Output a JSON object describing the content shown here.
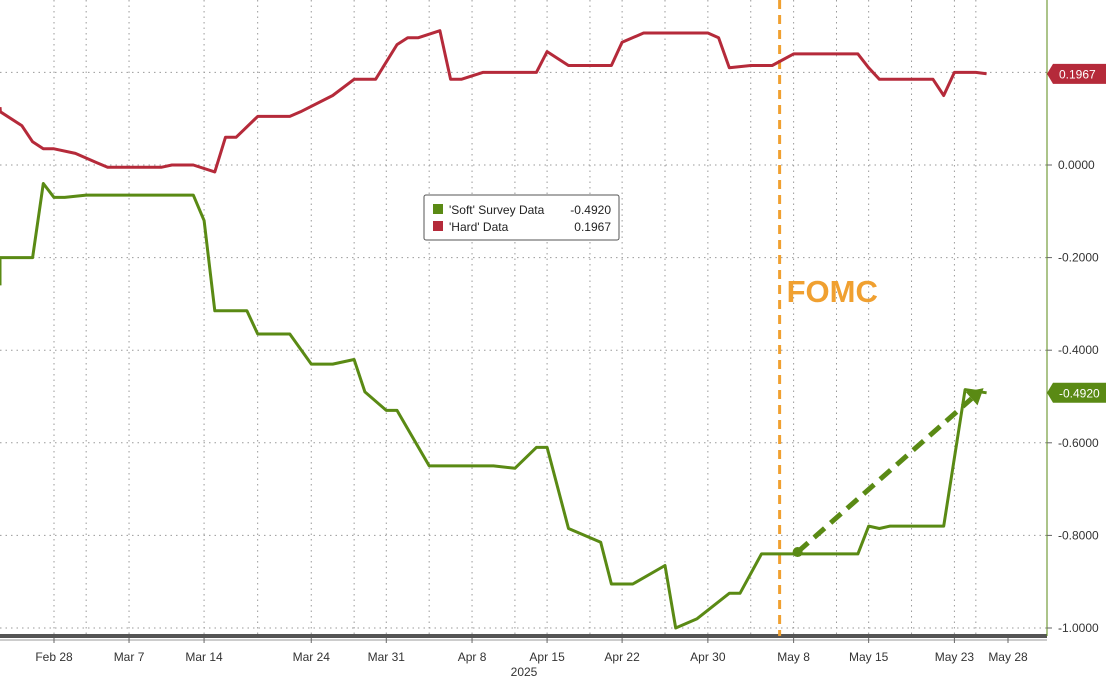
{
  "chart_data": {
    "type": "line",
    "xlabel": "2025",
    "x_ticks": [
      "Feb 28",
      "Mar 7",
      "Mar 14",
      "Mar 24",
      "Mar 31",
      "Apr 8",
      "Apr 15",
      "Apr 22",
      "Apr 30",
      "May 8",
      "May 15",
      "May 23",
      "May 28"
    ],
    "y_ticks": [
      "0.0000",
      "-0.2000",
      "-0.4000",
      "-0.6000",
      "-0.8000",
      "-1.0000"
    ],
    "ylim": [
      -1.0,
      0.35
    ],
    "grid": true,
    "legend_position": "center",
    "annotation": {
      "label": "FOMC",
      "x": "May 8",
      "color": "#f0a030"
    },
    "colors": {
      "soft": "#5a8a14",
      "hard": "#b52a3a",
      "fomc": "#f0a030",
      "arrow": "#5a8a14"
    },
    "series": [
      {
        "name": "'Soft' Survey Data",
        "last_label": "-0.4920",
        "last": -0.492,
        "color": "#5a8a14",
        "values": [
          {
            "x": "2025-02-21",
            "y": -0.26
          },
          {
            "x": "2025-02-22",
            "y": -0.2
          },
          {
            "x": "2025-02-26",
            "y": -0.2
          },
          {
            "x": "2025-02-27",
            "y": -0.04
          },
          {
            "x": "2025-02-28",
            "y": -0.07
          },
          {
            "x": "2025-03-01",
            "y": -0.07
          },
          {
            "x": "2025-03-03",
            "y": -0.065
          },
          {
            "x": "2025-03-13",
            "y": -0.065
          },
          {
            "x": "2025-03-14",
            "y": -0.12
          },
          {
            "x": "2025-03-15",
            "y": -0.315
          },
          {
            "x": "2025-03-18",
            "y": -0.315
          },
          {
            "x": "2025-03-19",
            "y": -0.365
          },
          {
            "x": "2025-03-22",
            "y": -0.365
          },
          {
            "x": "2025-03-24",
            "y": -0.43
          },
          {
            "x": "2025-03-26",
            "y": -0.43
          },
          {
            "x": "2025-03-28",
            "y": -0.42
          },
          {
            "x": "2025-03-29",
            "y": -0.49
          },
          {
            "x": "2025-03-31",
            "y": -0.53
          },
          {
            "x": "2025-04-01",
            "y": -0.53
          },
          {
            "x": "2025-04-04",
            "y": -0.65
          },
          {
            "x": "2025-04-10",
            "y": -0.65
          },
          {
            "x": "2025-04-12",
            "y": -0.655
          },
          {
            "x": "2025-04-14",
            "y": -0.61
          },
          {
            "x": "2025-04-15",
            "y": -0.61
          },
          {
            "x": "2025-04-17",
            "y": -0.785
          },
          {
            "x": "2025-04-20",
            "y": -0.815
          },
          {
            "x": "2025-04-21",
            "y": -0.905
          },
          {
            "x": "2025-04-23",
            "y": -0.905
          },
          {
            "x": "2025-04-26",
            "y": -0.865
          },
          {
            "x": "2025-04-27",
            "y": -1.0
          },
          {
            "x": "2025-04-29",
            "y": -0.98
          },
          {
            "x": "2025-05-02",
            "y": -0.925
          },
          {
            "x": "2025-05-03",
            "y": -0.925
          },
          {
            "x": "2025-05-05",
            "y": -0.84
          },
          {
            "x": "2025-05-14",
            "y": -0.84
          },
          {
            "x": "2025-05-15",
            "y": -0.78
          },
          {
            "x": "2025-05-16",
            "y": -0.785
          },
          {
            "x": "2025-05-17",
            "y": -0.78
          },
          {
            "x": "2025-05-22",
            "y": -0.78
          },
          {
            "x": "2025-05-24",
            "y": -0.485
          },
          {
            "x": "2025-05-26",
            "y": -0.492
          }
        ]
      },
      {
        "name": "'Hard' Data",
        "last_label": "0.1967",
        "last": 0.1967,
        "color": "#b52a3a",
        "values": [
          {
            "x": "2025-02-21",
            "y": 0.125
          },
          {
            "x": "2025-02-22",
            "y": 0.125
          },
          {
            "x": "2025-02-23",
            "y": 0.115
          },
          {
            "x": "2025-02-25",
            "y": 0.085
          },
          {
            "x": "2025-02-26",
            "y": 0.05
          },
          {
            "x": "2025-02-27",
            "y": 0.035
          },
          {
            "x": "2025-02-28",
            "y": 0.035
          },
          {
            "x": "2025-03-02",
            "y": 0.025
          },
          {
            "x": "2025-03-04",
            "y": 0.005
          },
          {
            "x": "2025-03-05",
            "y": -0.005
          },
          {
            "x": "2025-03-10",
            "y": -0.005
          },
          {
            "x": "2025-03-11",
            "y": 0.0
          },
          {
            "x": "2025-03-13",
            "y": 0.0
          },
          {
            "x": "2025-03-15",
            "y": -0.015
          },
          {
            "x": "2025-03-16",
            "y": 0.06
          },
          {
            "x": "2025-03-17",
            "y": 0.06
          },
          {
            "x": "2025-03-19",
            "y": 0.105
          },
          {
            "x": "2025-03-22",
            "y": 0.105
          },
          {
            "x": "2025-03-23",
            "y": 0.115
          },
          {
            "x": "2025-03-26",
            "y": 0.15
          },
          {
            "x": "2025-03-28",
            "y": 0.185
          },
          {
            "x": "2025-03-30",
            "y": 0.185
          },
          {
            "x": "2025-04-01",
            "y": 0.26
          },
          {
            "x": "2025-04-02",
            "y": 0.275
          },
          {
            "x": "2025-04-03",
            "y": 0.275
          },
          {
            "x": "2025-04-05",
            "y": 0.29
          },
          {
            "x": "2025-04-06",
            "y": 0.185
          },
          {
            "x": "2025-04-07",
            "y": 0.185
          },
          {
            "x": "2025-04-09",
            "y": 0.2
          },
          {
            "x": "2025-04-11",
            "y": 0.2
          },
          {
            "x": "2025-04-13",
            "y": 0.2
          },
          {
            "x": "2025-04-14",
            "y": 0.2
          },
          {
            "x": "2025-04-15",
            "y": 0.245
          },
          {
            "x": "2025-04-17",
            "y": 0.215
          },
          {
            "x": "2025-04-20",
            "y": 0.215
          },
          {
            "x": "2025-04-21",
            "y": 0.215
          },
          {
            "x": "2025-04-22",
            "y": 0.265
          },
          {
            "x": "2025-04-24",
            "y": 0.285
          },
          {
            "x": "2025-04-30",
            "y": 0.285
          },
          {
            "x": "2025-05-01",
            "y": 0.275
          },
          {
            "x": "2025-05-02",
            "y": 0.21
          },
          {
            "x": "2025-05-04",
            "y": 0.215
          },
          {
            "x": "2025-05-06",
            "y": 0.215
          },
          {
            "x": "2025-05-08",
            "y": 0.24
          },
          {
            "x": "2025-05-12",
            "y": 0.24
          },
          {
            "x": "2025-05-14",
            "y": 0.24
          },
          {
            "x": "2025-05-15",
            "y": 0.21
          },
          {
            "x": "2025-05-16",
            "y": 0.185
          },
          {
            "x": "2025-05-20",
            "y": 0.185
          },
          {
            "x": "2025-05-21",
            "y": 0.185
          },
          {
            "x": "2025-05-22",
            "y": 0.15
          },
          {
            "x": "2025-05-23",
            "y": 0.2
          },
          {
            "x": "2025-05-25",
            "y": 0.2
          },
          {
            "x": "2025-05-26",
            "y": 0.197
          }
        ]
      }
    ],
    "trend_arrow": {
      "color": "#5a8a14",
      "from": {
        "x": "2025-05-08",
        "y": -0.81
      },
      "to": {
        "x": "2025-05-26",
        "y": -0.525
      }
    }
  }
}
